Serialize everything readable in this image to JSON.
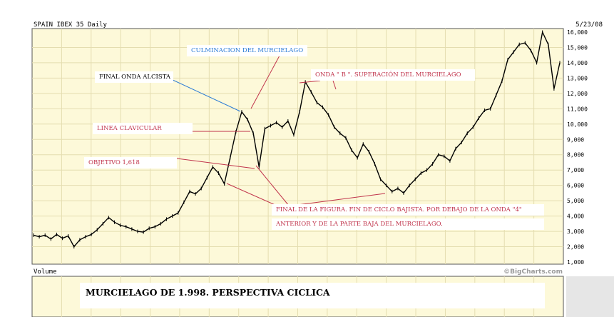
{
  "header": {
    "symbol": "SPAIN IBEX 35 Daily",
    "date": "5/23/08",
    "volume_label": "Volume",
    "credit": "©BigCharts.com"
  },
  "annotations": {
    "culminacion": "CULMINACION DEL MURCIELAGO",
    "final_onda": "FINAL ONDA ALCISTA",
    "onda_b": "ONDA \" B \". SUPERACIÓN DEL MURCIELAGO",
    "linea": "LINEA CLAVICULAR",
    "objetivo": "OBJETIVO 1,618",
    "final_figura": "FINAL DE LA FIGURA. FIN DE CICLO BAJISTA. POR DEBAJO DE LA ONDA \"4\"",
    "anterior": "ANTERIOR Y DE LA PARTE BAJA DEL MURCIELAGO.",
    "bottom_title": "MURCIELAGO DE 1.998. PERSPECTIVA CICLICA"
  },
  "colors": {
    "plot_bg": "#fdf9d9",
    "grid": "#e4ddb0",
    "red": "#c0334b",
    "blue": "#2b7bd6"
  },
  "chart_data": {
    "type": "line",
    "title": "SPAIN IBEX 35 Daily",
    "ylim": [
      1000,
      16000
    ],
    "y_ticks": [
      "16,000",
      "15,000",
      "14,000",
      "13,000",
      "12,000",
      "11,000",
      "10,000",
      "9,000",
      "8,000",
      "7,000",
      "6,000",
      "5,000",
      "4,000",
      "3,000",
      "2,000",
      "1,000"
    ],
    "series": [
      {
        "values": [
          2750,
          2650,
          2750,
          2500,
          2800,
          2550,
          2700,
          2000,
          2450,
          2650,
          2800,
          3100,
          3500,
          3900,
          3600,
          3400,
          3300,
          3150,
          3000,
          2950,
          3200,
          3300,
          3500,
          3800,
          4000,
          4200,
          4900,
          5600,
          5450,
          5800,
          6500,
          7200,
          6800,
          6100,
          7800,
          9500,
          10800,
          10300,
          9400,
          7200,
          9700,
          9900,
          10100,
          9800,
          10200,
          9300,
          10800,
          12750,
          12100,
          11400,
          11100,
          10600,
          9800,
          9400,
          9100,
          8300,
          7800,
          8700,
          8200,
          7400,
          6400,
          6000,
          5600,
          5800,
          5500,
          6000,
          6400,
          6800,
          7000,
          7400,
          8000,
          7900,
          7600,
          8400,
          8800,
          9400,
          9800,
          10400,
          10900,
          11000,
          11900,
          12800,
          14200,
          14700,
          15200,
          15300,
          14800,
          14000,
          16000,
          15200,
          12300,
          14000
        ]
      }
    ]
  }
}
